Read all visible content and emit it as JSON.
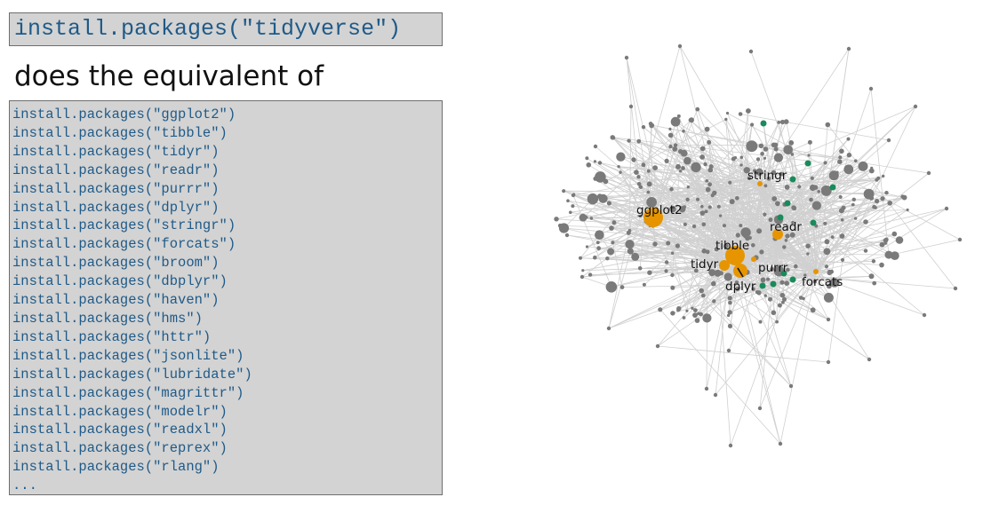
{
  "slide": {
    "command": "install.packages(\"tidyverse\")",
    "caption": "does the equivalent of",
    "package_lines": [
      "install.packages(\"ggplot2\")",
      "install.packages(\"tibble\")",
      "install.packages(\"tidyr\")",
      "install.packages(\"readr\")",
      "install.packages(\"purrr\")",
      "install.packages(\"dplyr\")",
      "install.packages(\"stringr\")",
      "install.packages(\"forcats\")",
      "install.packages(\"broom\")",
      "install.packages(\"dbplyr\")",
      "install.packages(\"haven\")",
      "install.packages(\"hms\")",
      "install.packages(\"httr\")",
      "install.packages(\"jsonlite\")",
      "install.packages(\"lubridate\")",
      "install.packages(\"magrittr\")",
      "install.packages(\"modelr\")",
      "install.packages(\"readxl\")",
      "install.packages(\"reprex\")",
      "install.packages(\"rlang\")",
      "..."
    ]
  },
  "network": {
    "colors": {
      "core": "#e69500",
      "tidyverse_other": "#1a8a5a",
      "dependency": "#7a7a7a",
      "edge": "#d0d0d0"
    },
    "labels": {
      "ggplot2": "ggplot2",
      "tibble": "tibble",
      "tidyr": "tidyr",
      "readr": "readr",
      "purrr": "purrr",
      "dplyr": "dplyr",
      "stringr": "stringr",
      "forcats": "forcats"
    }
  }
}
